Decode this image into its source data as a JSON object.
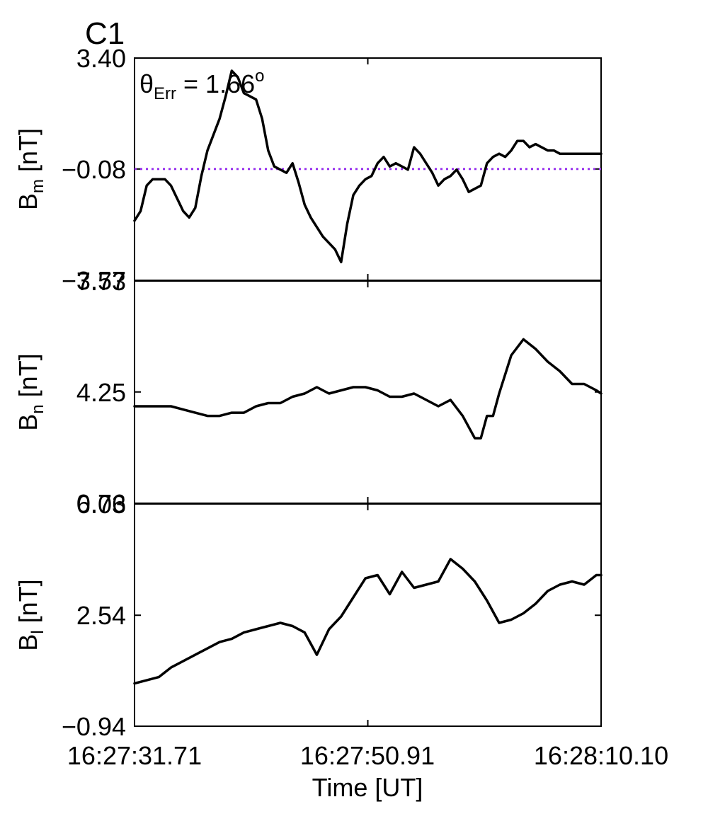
{
  "figure": {
    "label": "C1",
    "label_color": "#e00000",
    "annotation": {
      "prefix": "θ",
      "subscript": "Err",
      "equals": " =  1.66",
      "superscript": "o"
    },
    "line_color": "#000000",
    "reference_line_color": "#9933ee"
  },
  "chart_data": {
    "type": "line",
    "xlabel": "Time [UT]",
    "x_ticks": [
      "16:27:31.71",
      "16:27:50.91",
      "16:28:10.10"
    ],
    "xlim": [
      0,
      38.39
    ],
    "panels": [
      {
        "label_base": "B",
        "label_sub": "m",
        "label_unit": " [nT]",
        "ylim": [
          -3.57,
          3.4
        ],
        "y_ticks": [
          3.4,
          -0.08,
          -3.57
        ],
        "y_tick_labels": [
          "3.40",
          "−0.08",
          "−3.57"
        ],
        "reference_line": -0.08,
        "x": [
          0,
          0.5,
          1,
          1.5,
          2,
          2.5,
          3,
          3.5,
          4,
          4.5,
          5,
          5.5,
          6,
          6.5,
          7,
          7.5,
          8,
          8.5,
          9,
          9.5,
          10,
          10.5,
          11,
          11.5,
          12,
          12.5,
          13,
          13.5,
          14,
          14.5,
          15,
          15.5,
          16,
          16.5,
          17,
          17.5,
          18,
          18.5,
          19,
          19.5,
          20,
          20.5,
          21,
          21.5,
          22,
          22.5,
          23,
          23.5,
          24,
          24.5,
          25,
          25.5,
          26,
          26.5,
          27,
          27.5,
          28,
          28.5,
          29,
          29.5,
          30,
          30.5,
          31,
          31.5,
          32,
          32.5,
          33,
          33.5,
          34,
          34.5,
          35,
          35.5,
          36,
          36.5,
          37,
          37.5,
          38,
          38.39
        ],
        "y": [
          -1.7,
          -1.4,
          -0.6,
          -0.4,
          -0.4,
          -0.4,
          -0.6,
          -1.0,
          -1.4,
          -1.6,
          -1.3,
          -0.3,
          0.5,
          1.0,
          1.5,
          2.2,
          3.0,
          2.8,
          2.3,
          2.2,
          2.1,
          1.5,
          0.5,
          0.0,
          -0.1,
          -0.2,
          0.1,
          -0.5,
          -1.2,
          -1.6,
          -1.9,
          -2.2,
          -2.4,
          -2.6,
          -3.0,
          -1.8,
          -0.9,
          -0.6,
          -0.4,
          -0.3,
          0.1,
          0.3,
          0.0,
          0.1,
          0.0,
          -0.1,
          0.6,
          0.4,
          0.1,
          -0.2,
          -0.6,
          -0.4,
          -0.3,
          -0.1,
          -0.4,
          -0.8,
          -0.7,
          -0.6,
          0.1,
          0.3,
          0.4,
          0.3,
          0.5,
          0.8,
          0.8,
          0.6,
          0.7,
          0.6,
          0.5,
          0.5,
          0.4,
          0.4,
          0.4,
          0.4,
          0.4,
          0.4,
          0.4,
          0.4
        ]
      },
      {
        "label_base": "B",
        "label_sub": "n",
        "label_unit": " [nT]",
        "ylim": [
          0.76,
          7.73
        ],
        "y_ticks": [
          7.73,
          4.25,
          0.76
        ],
        "y_tick_labels": [
          "7.73",
          "4.25",
          "0.76"
        ],
        "x": [
          0,
          1,
          2,
          3,
          4,
          5,
          6,
          7,
          8,
          9,
          10,
          11,
          12,
          13,
          14,
          15,
          16,
          17,
          18,
          19,
          20,
          21,
          22,
          23,
          24,
          25,
          26,
          27,
          28,
          28.5,
          29,
          29.5,
          30,
          31,
          32,
          33,
          34,
          35,
          36,
          37,
          38,
          38.39
        ],
        "y": [
          3.8,
          3.8,
          3.8,
          3.8,
          3.7,
          3.6,
          3.5,
          3.5,
          3.6,
          3.6,
          3.8,
          3.9,
          3.9,
          4.1,
          4.2,
          4.4,
          4.2,
          4.3,
          4.4,
          4.4,
          4.3,
          4.1,
          4.1,
          4.2,
          4.0,
          3.8,
          4.0,
          3.5,
          2.8,
          2.8,
          3.5,
          3.5,
          4.2,
          5.4,
          5.9,
          5.6,
          5.2,
          4.9,
          4.5,
          4.5,
          4.3,
          4.2
        ]
      },
      {
        "label_base": "B",
        "label_sub": "l",
        "label_unit": " [nT]",
        "ylim": [
          -0.94,
          6.03
        ],
        "y_ticks": [
          6.03,
          2.54,
          -0.94
        ],
        "y_tick_labels": [
          "6.03",
          "2.54",
          "−0.94"
        ],
        "x": [
          0,
          1,
          2,
          3,
          4,
          5,
          6,
          7,
          8,
          9,
          10,
          11,
          12,
          13,
          14,
          15,
          16,
          17,
          18,
          19,
          20,
          21,
          22,
          23,
          24,
          25,
          26,
          27,
          28,
          29,
          30,
          31,
          32,
          33,
          34,
          35,
          36,
          37,
          38,
          38.39
        ],
        "y": [
          0.4,
          0.5,
          0.6,
          0.9,
          1.1,
          1.3,
          1.5,
          1.7,
          1.8,
          2.0,
          2.1,
          2.2,
          2.3,
          2.2,
          2.0,
          1.3,
          2.1,
          2.5,
          3.1,
          3.7,
          3.8,
          3.2,
          3.9,
          3.4,
          3.5,
          3.6,
          4.3,
          4.0,
          3.6,
          3.0,
          2.3,
          2.4,
          2.6,
          2.9,
          3.3,
          3.5,
          3.6,
          3.5,
          3.8,
          3.8
        ]
      }
    ]
  }
}
